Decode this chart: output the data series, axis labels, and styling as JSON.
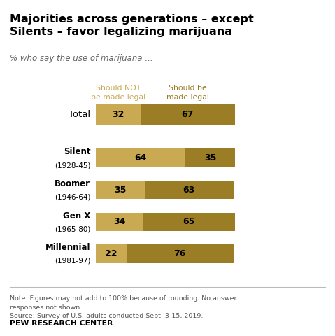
{
  "title": "Majorities across generations – except\nSilents – favor legalizing marijuana",
  "subtitle": "% who say the use of marijuana ...",
  "col1_label": "Should NOT\nbe made legal",
  "col2_label": "Should be\nmade legal",
  "col1_color": "#c9aa52",
  "col2_color": "#9a7d24",
  "rows": [
    {
      "label": "Total",
      "sub": "",
      "nl": 32,
      "lg": 67,
      "is_total": true
    },
    {
      "label": "Silent",
      "sub": "(1928-45)",
      "nl": 64,
      "lg": 35,
      "is_total": false
    },
    {
      "label": "Boomer",
      "sub": "(1946-64)",
      "nl": 35,
      "lg": 63,
      "is_total": false
    },
    {
      "label": "Gen X",
      "sub": "(1965-80)",
      "nl": 34,
      "lg": 65,
      "is_total": false
    },
    {
      "label": "Millennial",
      "sub": "(1981-97)",
      "nl": 22,
      "lg": 76,
      "is_total": false
    }
  ],
  "note": "Note: Figures may not add to 100% because of rounding. No answer\nresponses not shown.\nSource: Survey of U.S. adults conducted Sept. 3-15, 2019.",
  "source_label": "PEW RESEARCH CENTER",
  "bg_color": "#ffffff"
}
